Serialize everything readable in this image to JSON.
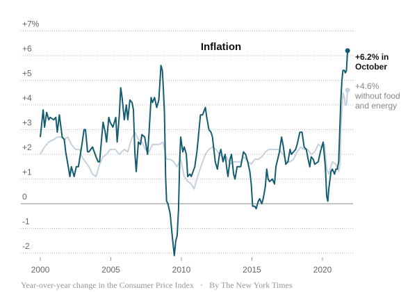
{
  "chart_data": {
    "type": "line",
    "title": "Inflation",
    "xlabel": "",
    "ylabel": "",
    "xlim": [
      1999.2,
      2022.3
    ],
    "ylim": [
      -2.2,
      7
    ],
    "x_ticks": [
      2000,
      2005,
      2010,
      2015,
      2020
    ],
    "x_tick_labels": [
      "2000",
      "2005",
      "2010",
      "2015",
      "2020"
    ],
    "y_ticks": [
      7,
      6,
      5,
      4,
      3,
      2,
      1,
      0,
      -1,
      -2
    ],
    "y_tick_labels": [
      "+7%",
      "+6",
      "+5",
      "+4",
      "+3",
      "+2",
      "+1",
      "0",
      "-1",
      "-2"
    ],
    "grid": true,
    "series": [
      {
        "name": "Consumer Price Index",
        "color": "#135b6e",
        "points": [
          [
            2000.0,
            2.7
          ],
          [
            2000.2,
            3.8
          ],
          [
            2000.3,
            3.1
          ],
          [
            2000.45,
            3.7
          ],
          [
            2000.6,
            3.4
          ],
          [
            2000.7,
            3.5
          ],
          [
            2000.95,
            3.4
          ],
          [
            2001.1,
            3.5
          ],
          [
            2001.2,
            2.9
          ],
          [
            2001.35,
            3.6
          ],
          [
            2001.55,
            2.7
          ],
          [
            2001.7,
            2.6
          ],
          [
            2001.8,
            2.1
          ],
          [
            2001.95,
            1.6
          ],
          [
            2002.1,
            1.1
          ],
          [
            2002.2,
            1.5
          ],
          [
            2002.4,
            1.1
          ],
          [
            2002.55,
            1.5
          ],
          [
            2002.7,
            1.5
          ],
          [
            2002.95,
            2.4
          ],
          [
            2003.1,
            3.0
          ],
          [
            2003.2,
            3.0
          ],
          [
            2003.35,
            2.1
          ],
          [
            2003.45,
            2.1
          ],
          [
            2003.7,
            2.3
          ],
          [
            2003.95,
            1.9
          ],
          [
            2004.1,
            1.7
          ],
          [
            2004.2,
            1.7
          ],
          [
            2004.45,
            3.3
          ],
          [
            2004.6,
            2.9
          ],
          [
            2004.7,
            2.5
          ],
          [
            2004.85,
            3.5
          ],
          [
            2004.95,
            3.3
          ],
          [
            2005.15,
            3.1
          ],
          [
            2005.35,
            3.5
          ],
          [
            2005.45,
            2.5
          ],
          [
            2005.6,
            3.6
          ],
          [
            2005.7,
            4.7
          ],
          [
            2005.8,
            4.3
          ],
          [
            2005.95,
            3.4
          ],
          [
            2006.1,
            4.0
          ],
          [
            2006.2,
            3.4
          ],
          [
            2006.35,
            4.2
          ],
          [
            2006.5,
            4.1
          ],
          [
            2006.6,
            3.8
          ],
          [
            2006.7,
            2.1
          ],
          [
            2006.8,
            1.3
          ],
          [
            2006.95,
            2.5
          ],
          [
            2007.1,
            2.4
          ],
          [
            2007.2,
            2.8
          ],
          [
            2007.4,
            2.7
          ],
          [
            2007.6,
            2.0
          ],
          [
            2007.7,
            2.8
          ],
          [
            2007.85,
            4.3
          ],
          [
            2007.95,
            4.1
          ],
          [
            2008.1,
            4.3
          ],
          [
            2008.25,
            3.9
          ],
          [
            2008.4,
            4.2
          ],
          [
            2008.55,
            5.6
          ],
          [
            2008.65,
            5.4
          ],
          [
            2008.7,
            4.9
          ],
          [
            2008.8,
            3.7
          ],
          [
            2008.88,
            1.1
          ],
          [
            2008.95,
            0.1
          ],
          [
            2009.05,
            0.0
          ],
          [
            2009.2,
            -0.4
          ],
          [
            2009.35,
            -1.3
          ],
          [
            2009.5,
            -2.1
          ],
          [
            2009.6,
            -1.5
          ],
          [
            2009.7,
            -1.3
          ],
          [
            2009.8,
            -0.2
          ],
          [
            2009.88,
            1.8
          ],
          [
            2009.95,
            2.7
          ],
          [
            2010.1,
            2.1
          ],
          [
            2010.2,
            2.3
          ],
          [
            2010.35,
            2.0
          ],
          [
            2010.45,
            1.1
          ],
          [
            2010.6,
            1.2
          ],
          [
            2010.7,
            1.1
          ],
          [
            2010.95,
            1.5
          ],
          [
            2011.1,
            2.1
          ],
          [
            2011.2,
            2.7
          ],
          [
            2011.35,
            3.6
          ],
          [
            2011.5,
            3.6
          ],
          [
            2011.7,
            3.9
          ],
          [
            2011.8,
            3.5
          ],
          [
            2011.95,
            3.0
          ],
          [
            2012.1,
            2.9
          ],
          [
            2012.2,
            2.7
          ],
          [
            2012.4,
            1.7
          ],
          [
            2012.55,
            1.4
          ],
          [
            2012.7,
            2.0
          ],
          [
            2012.8,
            2.2
          ],
          [
            2012.95,
            1.7
          ],
          [
            2013.1,
            2.0
          ],
          [
            2013.2,
            1.5
          ],
          [
            2013.3,
            1.1
          ],
          [
            2013.45,
            1.8
          ],
          [
            2013.55,
            2.0
          ],
          [
            2013.7,
            1.2
          ],
          [
            2013.8,
            1.0
          ],
          [
            2013.95,
            1.5
          ],
          [
            2014.2,
            1.5
          ],
          [
            2014.4,
            2.1
          ],
          [
            2014.55,
            2.0
          ],
          [
            2014.7,
            1.7
          ],
          [
            2014.85,
            1.3
          ],
          [
            2014.95,
            0.8
          ],
          [
            2015.05,
            -0.1
          ],
          [
            2015.2,
            -0.1
          ],
          [
            2015.3,
            -0.2
          ],
          [
            2015.45,
            0.1
          ],
          [
            2015.55,
            0.2
          ],
          [
            2015.7,
            0.0
          ],
          [
            2015.8,
            0.2
          ],
          [
            2015.95,
            0.7
          ],
          [
            2016.05,
            1.4
          ],
          [
            2016.15,
            1.0
          ],
          [
            2016.25,
            0.9
          ],
          [
            2016.45,
            1.0
          ],
          [
            2016.6,
            0.8
          ],
          [
            2016.7,
            1.5
          ],
          [
            2016.95,
            2.1
          ],
          [
            2017.1,
            2.7
          ],
          [
            2017.2,
            2.4
          ],
          [
            2017.4,
            1.6
          ],
          [
            2017.55,
            1.7
          ],
          [
            2017.7,
            2.2
          ],
          [
            2017.8,
            2.0
          ],
          [
            2017.95,
            2.1
          ],
          [
            2018.1,
            2.2
          ],
          [
            2018.2,
            2.4
          ],
          [
            2018.4,
            2.9
          ],
          [
            2018.55,
            2.9
          ],
          [
            2018.7,
            2.3
          ],
          [
            2018.85,
            2.2
          ],
          [
            2018.95,
            1.9
          ],
          [
            2019.1,
            1.5
          ],
          [
            2019.2,
            1.9
          ],
          [
            2019.35,
            1.8
          ],
          [
            2019.45,
            1.6
          ],
          [
            2019.7,
            1.7
          ],
          [
            2019.85,
            2.1
          ],
          [
            2019.95,
            2.3
          ],
          [
            2020.05,
            2.5
          ],
          [
            2020.2,
            1.5
          ],
          [
            2020.3,
            0.3
          ],
          [
            2020.38,
            0.1
          ],
          [
            2020.45,
            0.6
          ],
          [
            2020.6,
            1.3
          ],
          [
            2020.7,
            1.4
          ],
          [
            2020.85,
            1.2
          ],
          [
            2020.95,
            1.4
          ],
          [
            2021.05,
            1.4
          ],
          [
            2021.15,
            1.7
          ],
          [
            2021.2,
            2.6
          ],
          [
            2021.3,
            4.2
          ],
          [
            2021.38,
            5.0
          ],
          [
            2021.45,
            5.4
          ],
          [
            2021.55,
            5.4
          ],
          [
            2021.62,
            5.3
          ],
          [
            2021.7,
            5.4
          ],
          [
            2021.78,
            6.2
          ]
        ]
      },
      {
        "name": "Without food and energy",
        "color": "#c5d1dd",
        "points": [
          [
            2000.0,
            2.0
          ],
          [
            2000.3,
            2.3
          ],
          [
            2000.6,
            2.5
          ],
          [
            2000.95,
            2.6
          ],
          [
            2001.2,
            2.7
          ],
          [
            2001.45,
            2.7
          ],
          [
            2001.7,
            2.6
          ],
          [
            2001.95,
            2.7
          ],
          [
            2002.2,
            2.4
          ],
          [
            2002.5,
            2.2
          ],
          [
            2002.8,
            2.2
          ],
          [
            2002.95,
            1.9
          ],
          [
            2003.2,
            1.7
          ],
          [
            2003.45,
            1.5
          ],
          [
            2003.7,
            1.2
          ],
          [
            2003.95,
            1.1
          ],
          [
            2004.2,
            1.6
          ],
          [
            2004.45,
            1.9
          ],
          [
            2004.7,
            2.0
          ],
          [
            2004.95,
            2.2
          ],
          [
            2005.3,
            2.2
          ],
          [
            2005.6,
            2.0
          ],
          [
            2005.95,
            2.2
          ],
          [
            2006.2,
            2.1
          ],
          [
            2006.45,
            2.6
          ],
          [
            2006.7,
            2.9
          ],
          [
            2006.95,
            2.6
          ],
          [
            2007.2,
            2.5
          ],
          [
            2007.45,
            2.2
          ],
          [
            2007.7,
            2.1
          ],
          [
            2007.95,
            2.4
          ],
          [
            2008.2,
            2.4
          ],
          [
            2008.45,
            2.4
          ],
          [
            2008.7,
            2.5
          ],
          [
            2008.95,
            1.8
          ],
          [
            2009.2,
            1.8
          ],
          [
            2009.45,
            1.7
          ],
          [
            2009.7,
            1.5
          ],
          [
            2009.95,
            1.8
          ],
          [
            2010.2,
            1.1
          ],
          [
            2010.45,
            0.9
          ],
          [
            2010.7,
            0.8
          ],
          [
            2010.9,
            0.6
          ],
          [
            2011.2,
            1.2
          ],
          [
            2011.45,
            1.6
          ],
          [
            2011.7,
            2.0
          ],
          [
            2011.95,
            2.2
          ],
          [
            2012.2,
            2.3
          ],
          [
            2012.45,
            2.2
          ],
          [
            2012.7,
            2.0
          ],
          [
            2012.95,
            1.9
          ],
          [
            2013.2,
            1.9
          ],
          [
            2013.45,
            1.6
          ],
          [
            2013.7,
            1.7
          ],
          [
            2013.95,
            1.7
          ],
          [
            2014.2,
            1.7
          ],
          [
            2014.45,
            1.9
          ],
          [
            2014.7,
            1.7
          ],
          [
            2014.95,
            1.6
          ],
          [
            2015.2,
            1.8
          ],
          [
            2015.45,
            1.8
          ],
          [
            2015.7,
            1.9
          ],
          [
            2015.95,
            2.1
          ],
          [
            2016.2,
            2.2
          ],
          [
            2016.45,
            2.2
          ],
          [
            2016.7,
            2.2
          ],
          [
            2016.95,
            2.2
          ],
          [
            2017.2,
            2.0
          ],
          [
            2017.45,
            1.7
          ],
          [
            2017.7,
            1.7
          ],
          [
            2017.95,
            1.8
          ],
          [
            2018.2,
            2.1
          ],
          [
            2018.45,
            2.3
          ],
          [
            2018.7,
            2.2
          ],
          [
            2018.95,
            2.2
          ],
          [
            2019.2,
            2.0
          ],
          [
            2019.45,
            2.1
          ],
          [
            2019.7,
            2.4
          ],
          [
            2019.95,
            2.3
          ],
          [
            2020.15,
            2.4
          ],
          [
            2020.3,
            1.4
          ],
          [
            2020.45,
            1.2
          ],
          [
            2020.7,
            1.7
          ],
          [
            2020.95,
            1.6
          ],
          [
            2021.15,
            1.3
          ],
          [
            2021.25,
            1.6
          ],
          [
            2021.3,
            3.0
          ],
          [
            2021.38,
            3.8
          ],
          [
            2021.45,
            4.5
          ],
          [
            2021.55,
            4.3
          ],
          [
            2021.62,
            4.0
          ],
          [
            2021.7,
            4.0
          ],
          [
            2021.78,
            4.6
          ]
        ]
      }
    ],
    "annotations": [
      {
        "line1": "+6.2% in",
        "line2": "October"
      },
      {
        "line1": "+4.6%",
        "line2": "without food",
        "line3": "and energy"
      }
    ]
  },
  "caption": {
    "description": "Year-over-year change in the Consumer Price Index",
    "separator": "•",
    "credit": "By The New York Times"
  }
}
